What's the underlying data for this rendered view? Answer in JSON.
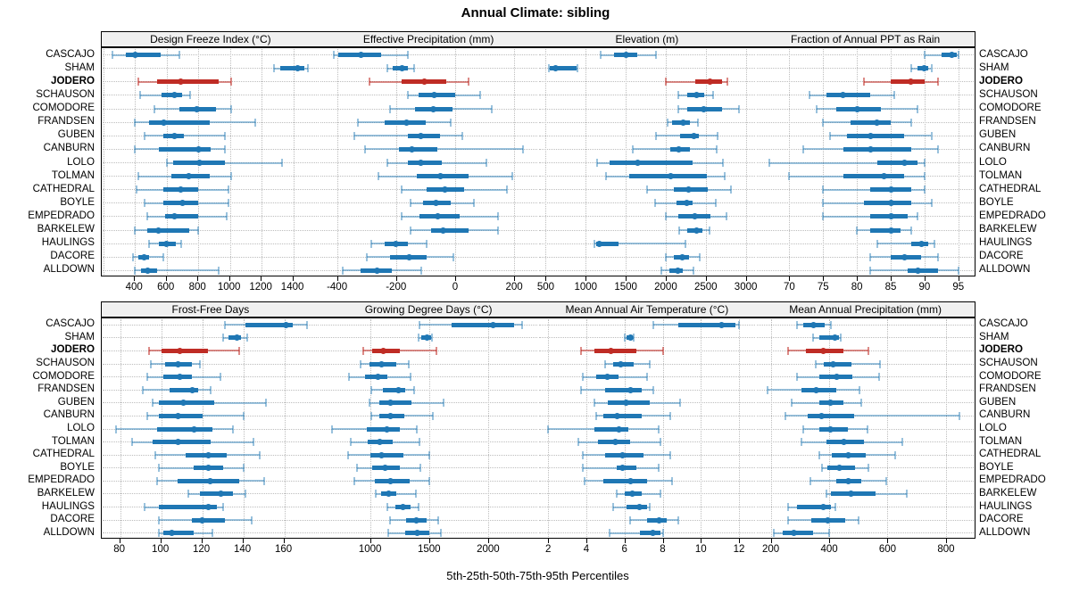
{
  "chart_data": {
    "type": "boxplot",
    "orientation": "horizontal",
    "title": "Annual Climate: sibling",
    "xlabel": "5th-25th-50th-75th-95th Percentiles",
    "percentiles": [
      5,
      25,
      50,
      75,
      95
    ],
    "grid": true,
    "legend_position": "none",
    "highlight_category": "JODERO",
    "categories": [
      "CASCAJO",
      "SHAM",
      "JODERO",
      "SCHAUSON",
      "COMODORE",
      "FRANDSEN",
      "GUBEN",
      "CANBURN",
      "LOLO",
      "TOLMAN",
      "CATHEDRAL",
      "BOYLE",
      "EMPEDRADO",
      "BARKELEW",
      "HAULINGS",
      "DACORE",
      "ALLDOWN"
    ],
    "panels": [
      {
        "title": "Design Freeze Index (°C)",
        "row": 0,
        "xlim": [
          190,
          1570
        ],
        "ticks": [
          400,
          600,
          800,
          1000,
          1200,
          1400
        ],
        "values": [
          [
            260,
            340,
            400,
            560,
            680
          ],
          [
            1280,
            1320,
            1430,
            1470,
            1490
          ],
          [
            420,
            540,
            690,
            930,
            1010
          ],
          [
            430,
            570,
            650,
            700,
            750
          ],
          [
            520,
            680,
            790,
            910,
            1010
          ],
          [
            400,
            490,
            580,
            870,
            1160
          ],
          [
            460,
            580,
            650,
            710,
            970
          ],
          [
            400,
            550,
            800,
            880,
            970
          ],
          [
            600,
            640,
            810,
            970,
            1330
          ],
          [
            420,
            630,
            740,
            870,
            1010
          ],
          [
            410,
            580,
            690,
            800,
            990
          ],
          [
            460,
            580,
            700,
            800,
            990
          ],
          [
            480,
            590,
            650,
            800,
            980
          ],
          [
            400,
            480,
            550,
            740,
            800
          ],
          [
            490,
            550,
            600,
            660,
            690
          ],
          [
            390,
            420,
            460,
            490,
            580
          ],
          [
            400,
            440,
            480,
            540,
            930
          ]
        ]
      },
      {
        "title": "Effective Precipitation (mm)",
        "row": 0,
        "xlim": [
          -460,
          280
        ],
        "ticks": [
          -400,
          -200,
          0,
          200
        ],
        "values": [
          [
            -410,
            -395,
            -320,
            -250,
            -160
          ],
          [
            -230,
            -210,
            -180,
            -160,
            -140
          ],
          [
            -290,
            -180,
            -105,
            -30,
            45
          ],
          [
            -160,
            -125,
            -70,
            0,
            85
          ],
          [
            -220,
            -135,
            -75,
            -10,
            125
          ],
          [
            -330,
            -240,
            -165,
            -100,
            -15
          ],
          [
            -340,
            -160,
            -115,
            -50,
            25
          ],
          [
            -305,
            -190,
            -145,
            -60,
            230
          ],
          [
            -230,
            -160,
            -115,
            -45,
            105
          ],
          [
            -260,
            -130,
            -50,
            45,
            195
          ],
          [
            -180,
            -95,
            -35,
            30,
            175
          ],
          [
            -150,
            -110,
            -65,
            -15,
            65
          ],
          [
            -180,
            -120,
            -60,
            15,
            145
          ],
          [
            -150,
            -80,
            -40,
            45,
            145
          ],
          [
            -285,
            -240,
            -200,
            -160,
            -95
          ],
          [
            -300,
            -220,
            -155,
            -95,
            -5
          ],
          [
            -380,
            -320,
            -265,
            -215,
            -115
          ]
        ]
      },
      {
        "title": "Elevation (m)",
        "row": 0,
        "xlim": [
          400,
          3130
        ],
        "ticks": [
          500,
          1000,
          1500,
          2000,
          2500,
          3000
        ],
        "values": [
          [
            1190,
            1350,
            1500,
            1640,
            1880
          ],
          [
            540,
            555,
            620,
            885,
            900
          ],
          [
            2000,
            2370,
            2550,
            2700,
            2770
          ],
          [
            2160,
            2270,
            2380,
            2480,
            2590
          ],
          [
            2160,
            2270,
            2470,
            2700,
            2920
          ],
          [
            2020,
            2080,
            2220,
            2300,
            2400
          ],
          [
            1880,
            2180,
            2350,
            2410,
            2650
          ],
          [
            1590,
            2060,
            2160,
            2300,
            2640
          ],
          [
            1140,
            1300,
            1650,
            2330,
            2710
          ],
          [
            1250,
            1540,
            2060,
            2510,
            2740
          ],
          [
            1770,
            2100,
            2280,
            2520,
            2810
          ],
          [
            1870,
            2130,
            2260,
            2330,
            2620
          ],
          [
            2000,
            2160,
            2360,
            2560,
            2760
          ],
          [
            2170,
            2270,
            2390,
            2460,
            2550
          ],
          [
            1110,
            1130,
            1170,
            1410,
            2250
          ],
          [
            2000,
            2100,
            2210,
            2290,
            2430
          ],
          [
            1940,
            2040,
            2150,
            2210,
            2350
          ]
        ]
      },
      {
        "title": "Fraction of Annual PPT as Rain",
        "row": 0,
        "xlim": [
          65.1,
          97.4
        ],
        "ticks": [
          70,
          75,
          80,
          85,
          90,
          95
        ],
        "values": [
          [
            90,
            92.5,
            94,
            94.7,
            95
          ],
          [
            88,
            89,
            90,
            90.5,
            91
          ],
          [
            81,
            85,
            88,
            90,
            92
          ],
          [
            73,
            75.5,
            78,
            82,
            85.5
          ],
          [
            74,
            77,
            80,
            83.5,
            89
          ],
          [
            75,
            79,
            83,
            85,
            88
          ],
          [
            76,
            78.5,
            82,
            87,
            91
          ],
          [
            72,
            78,
            82,
            88,
            92
          ],
          [
            67,
            83,
            87,
            89,
            90
          ],
          [
            70,
            78,
            84,
            87,
            90
          ],
          [
            75,
            82,
            85,
            88,
            90
          ],
          [
            75,
            81,
            85,
            88,
            91
          ],
          [
            75,
            82,
            85,
            87.5,
            89
          ],
          [
            80,
            82,
            85,
            86.5,
            88
          ],
          [
            83,
            88,
            89.5,
            90.5,
            91.5
          ],
          [
            82,
            85,
            87,
            89.5,
            92
          ],
          [
            82,
            87.5,
            89,
            92,
            95
          ]
        ]
      },
      {
        "title": "Frost-Free Days",
        "row": 1,
        "xlim": [
          71,
          177.5
        ],
        "ticks": [
          80,
          100,
          120,
          140,
          160
        ],
        "values": [
          [
            131,
            141,
            161,
            164,
            171
          ],
          [
            130,
            133,
            137,
            139,
            142
          ],
          [
            94,
            100,
            109,
            123,
            138
          ],
          [
            95,
            102,
            108,
            115,
            119
          ],
          [
            93,
            101,
            109,
            115,
            129
          ],
          [
            91,
            104,
            115,
            118,
            124
          ],
          [
            96,
            99,
            111,
            126,
            151
          ],
          [
            93,
            99,
            108,
            120,
            140
          ],
          [
            78,
            98,
            116,
            125,
            135
          ],
          [
            86,
            96,
            108,
            124,
            145
          ],
          [
            97,
            112,
            123,
            132,
            148
          ],
          [
            99,
            116,
            123,
            130,
            140
          ],
          [
            98,
            108,
            124,
            138,
            150
          ],
          [
            113,
            119,
            129,
            135,
            141
          ],
          [
            92,
            99,
            123,
            127,
            130
          ],
          [
            99,
            115,
            120,
            131,
            144
          ],
          [
            99,
            101,
            105,
            116,
            125
          ]
        ]
      },
      {
        "title": "Growing Degree Days (°C)",
        "row": 1,
        "xlim": [
          570,
          2420
        ],
        "ticks": [
          1000,
          1500,
          2000
        ],
        "values": [
          [
            1420,
            1690,
            2040,
            2220,
            2290
          ],
          [
            1410,
            1435,
            1485,
            1515,
            1525
          ],
          [
            940,
            1020,
            1110,
            1250,
            1560
          ],
          [
            920,
            995,
            1100,
            1220,
            1330
          ],
          [
            825,
            955,
            1070,
            1145,
            1345
          ],
          [
            1010,
            1105,
            1240,
            1295,
            1370
          ],
          [
            995,
            1075,
            1170,
            1350,
            1620
          ],
          [
            1010,
            1080,
            1170,
            1290,
            1535
          ],
          [
            675,
            975,
            1140,
            1250,
            1395
          ],
          [
            840,
            980,
            1080,
            1195,
            1415
          ],
          [
            815,
            1000,
            1100,
            1285,
            1500
          ],
          [
            890,
            1020,
            1125,
            1255,
            1425
          ],
          [
            870,
            1040,
            1170,
            1335,
            1500
          ],
          [
            1045,
            1095,
            1155,
            1225,
            1390
          ],
          [
            1145,
            1215,
            1275,
            1340,
            1410
          ],
          [
            1170,
            1305,
            1390,
            1480,
            1575
          ],
          [
            1155,
            1300,
            1400,
            1500,
            1600
          ]
        ]
      },
      {
        "title": "Mean Annual Air Temperature (°C)",
        "row": 1,
        "xlim": [
          1.45,
          12.9
        ],
        "ticks": [
          2,
          4,
          6,
          8,
          10,
          12
        ],
        "values": [
          [
            7.5,
            8.8,
            11.1,
            11.8,
            12.0
          ],
          [
            6.0,
            6.1,
            6.3,
            6.4,
            6.5
          ],
          [
            3.7,
            4.4,
            5.3,
            6.6,
            8.0
          ],
          [
            5.0,
            5.4,
            5.8,
            6.5,
            7.3
          ],
          [
            3.8,
            4.5,
            5.1,
            5.7,
            7.2
          ],
          [
            3.7,
            5.0,
            6.3,
            6.9,
            7.5
          ],
          [
            4.4,
            5.1,
            6.1,
            7.3,
            8.9
          ],
          [
            4.5,
            4.9,
            5.6,
            6.9,
            8.4
          ],
          [
            2.0,
            4.4,
            5.7,
            6.2,
            7.8
          ],
          [
            3.6,
            4.6,
            5.5,
            6.3,
            7.9
          ],
          [
            3.8,
            5.0,
            5.9,
            7.0,
            8.4
          ],
          [
            3.8,
            5.6,
            5.9,
            6.6,
            7.8
          ],
          [
            3.9,
            4.9,
            6.3,
            7.2,
            8.5
          ],
          [
            5.6,
            6.0,
            6.4,
            6.9,
            7.9
          ],
          [
            5.4,
            6.1,
            6.8,
            7.2,
            7.3
          ],
          [
            6.3,
            7.2,
            7.8,
            8.2,
            8.8
          ],
          [
            5.2,
            6.8,
            7.5,
            7.9,
            8.0
          ]
        ]
      },
      {
        "title": "Mean Annual Precipitation (mm)",
        "row": 1,
        "xlim": [
          150,
          898
        ],
        "ticks": [
          200,
          400,
          600,
          800
        ],
        "values": [
          [
            290,
            310,
            345,
            385,
            405
          ],
          [
            345,
            365,
            420,
            435,
            440
          ],
          [
            260,
            320,
            380,
            450,
            535
          ],
          [
            355,
            380,
            415,
            475,
            575
          ],
          [
            290,
            365,
            425,
            480,
            570
          ],
          [
            190,
            305,
            355,
            425,
            505
          ],
          [
            270,
            365,
            405,
            450,
            510
          ],
          [
            250,
            325,
            375,
            485,
            845
          ],
          [
            310,
            365,
            405,
            465,
            530
          ],
          [
            305,
            390,
            450,
            520,
            650
          ],
          [
            365,
            410,
            465,
            525,
            625
          ],
          [
            375,
            395,
            435,
            490,
            535
          ],
          [
            335,
            425,
            465,
            510,
            595
          ],
          [
            390,
            405,
            475,
            560,
            665
          ],
          [
            260,
            290,
            380,
            405,
            420
          ],
          [
            260,
            340,
            395,
            455,
            500
          ],
          [
            210,
            240,
            280,
            345,
            400
          ]
        ]
      }
    ]
  },
  "colors": {
    "series": "#1f77b4",
    "series_light": "rgba(31,119,180,0.45)",
    "highlight": "#bf2c25",
    "highlight_light": "rgba(191,44,37,0.55)",
    "grid": "#bdbdbd",
    "header_bg": "#f0f0f0"
  }
}
